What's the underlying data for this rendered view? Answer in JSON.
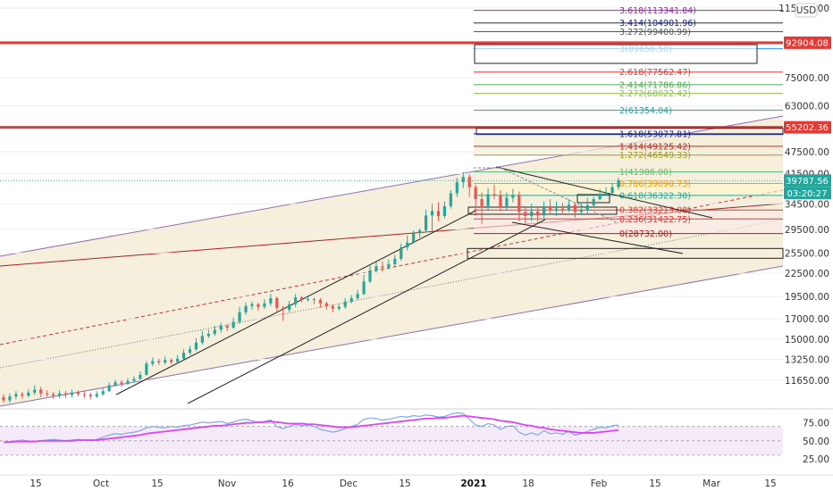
{
  "currency_badge": "USD",
  "chart_data": [
    {
      "type": "candlestick",
      "title": "",
      "scale": "log",
      "x_ticks": [
        "15",
        "Oct",
        "15",
        "Nov",
        "16",
        "Dec",
        "15",
        "2021",
        "18",
        "Feb",
        "15",
        "Mar",
        "15"
      ],
      "y_ticks": [
        "115000.00",
        "75000.00",
        "63000.00",
        "47500.00",
        "41500.00",
        "34500.00",
        "29500.00",
        "25500.00",
        "22500.00",
        "19500.00",
        "17000.00",
        "15000.00",
        "13250.00",
        "11650.00"
      ],
      "ylim": [
        10300,
        125000
      ],
      "price_badges": [
        {
          "label": "92904.08",
          "color": "#e53935"
        },
        {
          "label": "55202.36",
          "color": "#e53935"
        },
        {
          "label": "39787.56",
          "color": "#26a69a"
        },
        {
          "label": "03:20:27",
          "color": "#26a69a"
        }
      ],
      "horizontal_levels": [
        {
          "value": 92904.08,
          "color": "#e53935"
        },
        {
          "value": 55202.36,
          "color": "#e53935"
        }
      ],
      "fib_extension": [
        {
          "label": "3.618(113341.84)",
          "value": 113341.84,
          "color": "#9c27b0"
        },
        {
          "label": "3.414(104901.96)",
          "value": 104901.96,
          "color": "#1a237e"
        },
        {
          "label": "3.272(99400.99)",
          "value": 99400.99,
          "color": "#555555"
        },
        {
          "label": "3(89656.50)",
          "value": 89656.5,
          "color": "#2196f3"
        },
        {
          "label": "2.618(77562.47)",
          "value": 77562.47,
          "color": "#e53935"
        },
        {
          "label": "2.414(71786.86)",
          "value": 71786.86,
          "color": "#4caf50"
        },
        {
          "label": "2.272(68022.42)",
          "value": 68022.42,
          "color": "#8bc34a"
        },
        {
          "label": "2(61354.04)",
          "value": 61354.04,
          "color": "#26a69a"
        },
        {
          "label": "1.618(53077.81)",
          "value": 53077.81,
          "color": "#1a237e"
        },
        {
          "label": "1.414(49125.42)",
          "value": 49125.42,
          "color": "#c62828"
        },
        {
          "label": "1.272(46549.33)",
          "value": 46549.33,
          "color": "#9e9d24"
        },
        {
          "label": "1(41986.00)",
          "value": 41986.0,
          "color": "#66bb6a"
        },
        {
          "label": "0.786(39090.73)",
          "value": 39090.73,
          "color": "#ff9800"
        },
        {
          "label": "0.618(36322.38)",
          "value": 36322.38,
          "color": "#26a69a"
        },
        {
          "label": "0.382(33213.08)",
          "value": 33213.08,
          "color": "#e53935"
        },
        {
          "label": "0.236(31422.75)",
          "value": 31422.75,
          "color": "#e53935"
        },
        {
          "label": "0(28732.00)",
          "value": 28732.0,
          "color": "#b71c1c"
        }
      ],
      "candles": [
        [
          10500,
          10300,
          10700,
          10150
        ],
        [
          10300,
          10550,
          10750,
          10150
        ],
        [
          10550,
          10700,
          10900,
          10350
        ],
        [
          10700,
          10600,
          10850,
          10400
        ],
        [
          10600,
          10800,
          11000,
          10500
        ],
        [
          10800,
          11000,
          11300,
          10650
        ],
        [
          11000,
          10750,
          11200,
          10500
        ],
        [
          10750,
          10700,
          10950,
          10550
        ],
        [
          10700,
          10600,
          10850,
          10400
        ],
        [
          10600,
          10750,
          10950,
          10450
        ],
        [
          10750,
          10650,
          10900,
          10450
        ],
        [
          10650,
          10800,
          11000,
          10500
        ],
        [
          10800,
          10700,
          10950,
          10550
        ],
        [
          10700,
          10650,
          10900,
          10450
        ],
        [
          10650,
          10550,
          10800,
          10350
        ],
        [
          10550,
          10700,
          10900,
          10450
        ],
        [
          10700,
          10900,
          11100,
          10600
        ],
        [
          10900,
          11300,
          11500,
          10850
        ],
        [
          11300,
          11500,
          11700,
          11200
        ],
        [
          11500,
          11400,
          11650,
          11200
        ],
        [
          11400,
          11600,
          11800,
          11300
        ],
        [
          11600,
          11750,
          11950,
          11500
        ],
        [
          11750,
          12050,
          12300,
          11700
        ],
        [
          12050,
          12900,
          13100,
          12000
        ],
        [
          12900,
          13100,
          13400,
          12700
        ],
        [
          13100,
          13000,
          13300,
          12800
        ],
        [
          13000,
          13200,
          13500,
          12850
        ],
        [
          13200,
          13050,
          13350,
          12850
        ],
        [
          13050,
          13300,
          13600,
          12950
        ],
        [
          13300,
          13800,
          14100,
          13200
        ],
        [
          13800,
          14100,
          14400,
          13650
        ],
        [
          14100,
          14700,
          15100,
          13950
        ],
        [
          14700,
          15300,
          15800,
          14500
        ],
        [
          15300,
          15500,
          15900,
          15100
        ],
        [
          15500,
          15900,
          16300,
          15300
        ],
        [
          15900,
          16300,
          16600,
          15600
        ],
        [
          16300,
          16100,
          16500,
          15800
        ],
        [
          16100,
          16700,
          17100,
          16000
        ],
        [
          16700,
          17700,
          18300,
          16500
        ],
        [
          17700,
          18400,
          18800,
          17400
        ],
        [
          18400,
          18600,
          18900,
          18000
        ],
        [
          18600,
          18300,
          18800,
          17900
        ],
        [
          18300,
          18700,
          19200,
          18100
        ],
        [
          18700,
          19300,
          19800,
          18400
        ],
        [
          19300,
          18200,
          19500,
          17600
        ],
        [
          18200,
          18000,
          18400,
          16800
        ],
        [
          18000,
          18600,
          19000,
          17700
        ],
        [
          18600,
          19400,
          19800,
          18300
        ],
        [
          19400,
          19100,
          19600,
          18800
        ],
        [
          19100,
          19200,
          19500,
          18900
        ],
        [
          19200,
          19100,
          19400,
          18600
        ],
        [
          19100,
          18700,
          19300,
          18200
        ],
        [
          18700,
          18400,
          18900,
          18000
        ],
        [
          18400,
          18100,
          18600,
          17700
        ],
        [
          18100,
          18300,
          18600,
          17900
        ],
        [
          18300,
          18900,
          19300,
          18100
        ],
        [
          18900,
          19300,
          19700,
          18700
        ],
        [
          19300,
          19800,
          20300,
          19100
        ],
        [
          19800,
          21400,
          22300,
          19700
        ],
        [
          21400,
          22900,
          23700,
          21200
        ],
        [
          22900,
          23500,
          24100,
          22600
        ],
        [
          23500,
          23300,
          24200,
          22700
        ],
        [
          23300,
          23800,
          24500,
          23000
        ],
        [
          23800,
          24600,
          25200,
          23500
        ],
        [
          24600,
          26400,
          27000,
          24300
        ],
        [
          26400,
          27200,
          28400,
          25900
        ],
        [
          27200,
          28800,
          29300,
          27000
        ],
        [
          28800,
          29300,
          29600,
          28000
        ],
        [
          29300,
          32100,
          33300,
          28900
        ],
        [
          32100,
          33000,
          34500,
          29000
        ],
        [
          33000,
          32000,
          34800,
          31000
        ],
        [
          32000,
          34000,
          35000,
          31500
        ],
        [
          34000,
          36800,
          37500,
          33500
        ],
        [
          36800,
          39400,
          40500,
          36000
        ],
        [
          39400,
          40700,
          41900,
          38000
        ],
        [
          40700,
          38200,
          41400,
          36000
        ],
        [
          38200,
          35500,
          38800,
          32000
        ],
        [
          35500,
          34000,
          37000,
          30500
        ],
        [
          34000,
          36600,
          38000,
          33000
        ],
        [
          36600,
          36400,
          38800,
          35500
        ],
        [
          36400,
          34000,
          37500,
          33000
        ],
        [
          34000,
          35800,
          37000,
          33000
        ],
        [
          35800,
          36400,
          37800,
          34800
        ],
        [
          36400,
          32800,
          37200,
          31000
        ],
        [
          32800,
          32000,
          34000,
          30500
        ],
        [
          32000,
          32900,
          34500,
          31000
        ],
        [
          32900,
          32100,
          33800,
          30800
        ],
        [
          32100,
          34000,
          35000,
          31600
        ],
        [
          34000,
          33300,
          35500,
          32200
        ],
        [
          33300,
          33500,
          35000,
          32000
        ],
        [
          33500,
          33200,
          34700,
          32200
        ],
        [
          33200,
          34300,
          35500,
          32800
        ],
        [
          34300,
          32800,
          34800,
          31700
        ],
        [
          32800,
          33100,
          34800,
          32200
        ],
        [
          33100,
          34200,
          35800,
          32500
        ],
        [
          34200,
          35500,
          36000,
          33800
        ],
        [
          35500,
          36700,
          37800,
          35200
        ],
        [
          36700,
          36900,
          38200,
          36200
        ],
        [
          36900,
          38200,
          39200,
          36600
        ],
        [
          38200,
          39790,
          40500,
          37600
        ]
      ],
      "rsi": {
        "ylim": [
          0,
          100
        ],
        "y_ticks": [
          "75.00",
          "50.00",
          "25.00"
        ],
        "band": [
          70,
          30
        ],
        "rsi_values": [
          48,
          49,
          50,
          51,
          50,
          49,
          50,
          51,
          52,
          51,
          50,
          51,
          52,
          51,
          50,
          52,
          55,
          58,
          60,
          59,
          61,
          62,
          64,
          68,
          70,
          69,
          68,
          70,
          69,
          71,
          72,
          74,
          76,
          75,
          76,
          77,
          74,
          76,
          79,
          80,
          78,
          75,
          77,
          79,
          70,
          67,
          70,
          73,
          71,
          72,
          70,
          66,
          64,
          62,
          64,
          67,
          70,
          73,
          80,
          82,
          81,
          79,
          80,
          82,
          84,
          83,
          85,
          84,
          86,
          85,
          83,
          84,
          87,
          89,
          88,
          80,
          72,
          70,
          74,
          72,
          66,
          70,
          71,
          62,
          58,
          61,
          58,
          64,
          60,
          61,
          59,
          63,
          58,
          60,
          63,
          66,
          69,
          68,
          71,
          72
        ],
        "rsi_ma_values": [
          48,
          48,
          49,
          49,
          49,
          49,
          50,
          50,
          50,
          50,
          50,
          50,
          51,
          51,
          51,
          51,
          52,
          53,
          54,
          55,
          56,
          57,
          58,
          60,
          61,
          62,
          63,
          64,
          65,
          66,
          67,
          68,
          69,
          70,
          71,
          71,
          72,
          73,
          74,
          75,
          75,
          76,
          76,
          77,
          76,
          75,
          74,
          74,
          74,
          73,
          73,
          72,
          71,
          70,
          69,
          69,
          69,
          70,
          71,
          72,
          73,
          74,
          75,
          76,
          77,
          78,
          79,
          80,
          81,
          81,
          82,
          82,
          83,
          84,
          85,
          84,
          83,
          82,
          81,
          80,
          78,
          77,
          76,
          74,
          72,
          71,
          69,
          68,
          66,
          65,
          64,
          63,
          62,
          61,
          61,
          61,
          62,
          63,
          64,
          65
        ]
      }
    }
  ]
}
